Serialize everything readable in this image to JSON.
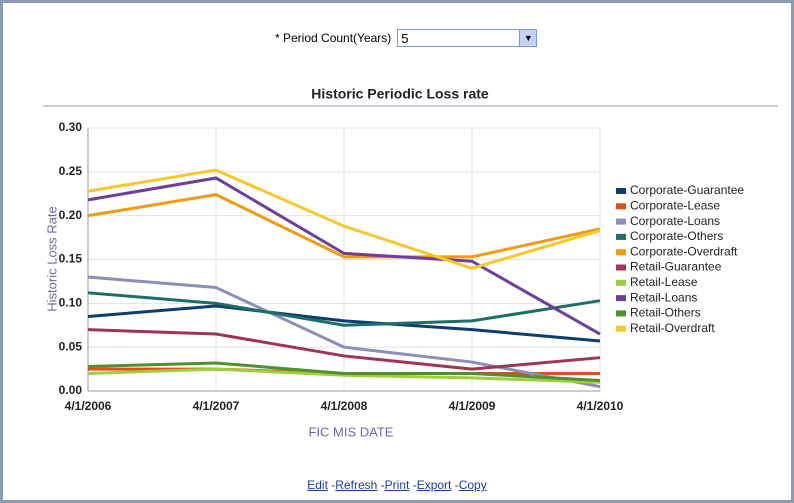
{
  "form": {
    "label": "* Period Count(Years)",
    "value": "5"
  },
  "links": {
    "items": [
      "Edit",
      "Refresh",
      "Print",
      "Export",
      "Copy"
    ],
    "separator": "-"
  },
  "chart_data": {
    "type": "line",
    "title": "Historic Periodic Loss rate",
    "xlabel": "FIC MIS DATE",
    "ylabel": "Historic Loss Rate",
    "categories": [
      "4/1/2006",
      "4/1/2007",
      "4/1/2008",
      "4/1/2009",
      "4/1/2010"
    ],
    "ylim": [
      0,
      0.3
    ],
    "yticks": [
      {
        "value": 0,
        "label": "0.00"
      },
      {
        "value": 0.05,
        "label": "0.05"
      },
      {
        "value": 0.1,
        "label": "0.10"
      },
      {
        "value": 0.15,
        "label": "0.15"
      },
      {
        "value": 0.2,
        "label": "0.20"
      },
      {
        "value": 0.25,
        "label": "0.25"
      },
      {
        "value": 0.3,
        "label": "0.30"
      }
    ],
    "grid": true,
    "legend": "right",
    "series": [
      {
        "name": "Corporate-Guarantee",
        "color": "#0b3d6e",
        "values": [
          0.085,
          0.097,
          0.08,
          0.07,
          0.057
        ]
      },
      {
        "name": "Corporate-Lease",
        "color": "#e04e1a",
        "values": [
          0.025,
          0.025,
          0.02,
          0.02,
          0.02
        ]
      },
      {
        "name": "Corporate-Loans",
        "color": "#8c8db8",
        "values": [
          0.13,
          0.118,
          0.05,
          0.033,
          0.005
        ]
      },
      {
        "name": "Corporate-Others",
        "color": "#1c6f67",
        "values": [
          0.112,
          0.1,
          0.075,
          0.08,
          0.103
        ]
      },
      {
        "name": "Corporate-Overdraft",
        "color": "#f29a10",
        "values": [
          0.2,
          0.224,
          0.153,
          0.153,
          0.185
        ]
      },
      {
        "name": "Retail-Guarantee",
        "color": "#a0335a",
        "values": [
          0.07,
          0.065,
          0.04,
          0.025,
          0.038
        ]
      },
      {
        "name": "Retail-Lease",
        "color": "#9ccf3c",
        "values": [
          0.02,
          0.025,
          0.018,
          0.015,
          0.01
        ]
      },
      {
        "name": "Retail-Loans",
        "color": "#6b3f9e",
        "values": [
          0.218,
          0.243,
          0.157,
          0.148,
          0.065
        ]
      },
      {
        "name": "Retail-Others",
        "color": "#4f8f30",
        "values": [
          0.028,
          0.032,
          0.02,
          0.02,
          0.012
        ]
      },
      {
        "name": "Retail-Overdraft",
        "color": "#f7c72c",
        "values": [
          0.228,
          0.252,
          0.188,
          0.14,
          0.183
        ]
      }
    ]
  }
}
